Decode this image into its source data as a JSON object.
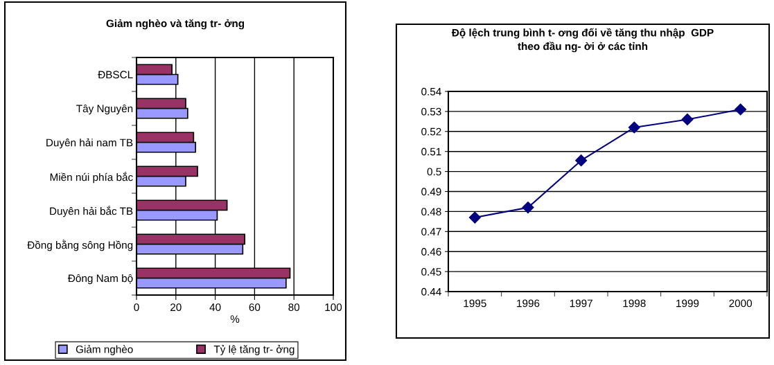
{
  "chart_data": [
    {
      "type": "bar",
      "orientation": "horizontal",
      "title": "Giảm nghèo và tăng tr- ởng",
      "xlabel": "%",
      "categories": [
        "ĐBSCL",
        "Tây Nguyên",
        "Duyên hải nam TB",
        "Miền núi phía bắc",
        "Duyên hải bắc TB",
        "Đồng bằng sông Hồng",
        "Đông Nam bộ"
      ],
      "series": [
        {
          "name": "Giảm nghèo",
          "color": "#9999ff",
          "values": [
            21,
            26,
            30,
            25,
            41,
            54,
            76
          ]
        },
        {
          "name": "Tỷ lệ tăng tr- ởng",
          "color": "#993366",
          "values": [
            18,
            25,
            29,
            31,
            46,
            55,
            78
          ]
        }
      ],
      "xlim": [
        0,
        100
      ],
      "xticks": [
        0,
        20,
        40,
        60,
        80,
        100
      ],
      "grid": "x",
      "legend": "bottom"
    },
    {
      "type": "line",
      "title": "Độ lệch trung bình t- ơng đối về tăng thu nhập  GDP\ntheo đầu ng- ời ở các tỉnh",
      "categories": [
        "1995",
        "1996",
        "1997",
        "1998",
        "1999",
        "2000"
      ],
      "series": [
        {
          "color": "#000080",
          "values": [
            0.477,
            0.482,
            0.5055,
            0.522,
            0.526,
            0.531
          ]
        }
      ],
      "ylim": [
        0.44,
        0.54
      ],
      "yticks": [
        0.44,
        0.45,
        0.46,
        0.47,
        0.48,
        0.49,
        0.5,
        0.51,
        0.52,
        0.53,
        0.54
      ],
      "grid": "y",
      "marker": "diamond",
      "line_style": "solid"
    }
  ]
}
